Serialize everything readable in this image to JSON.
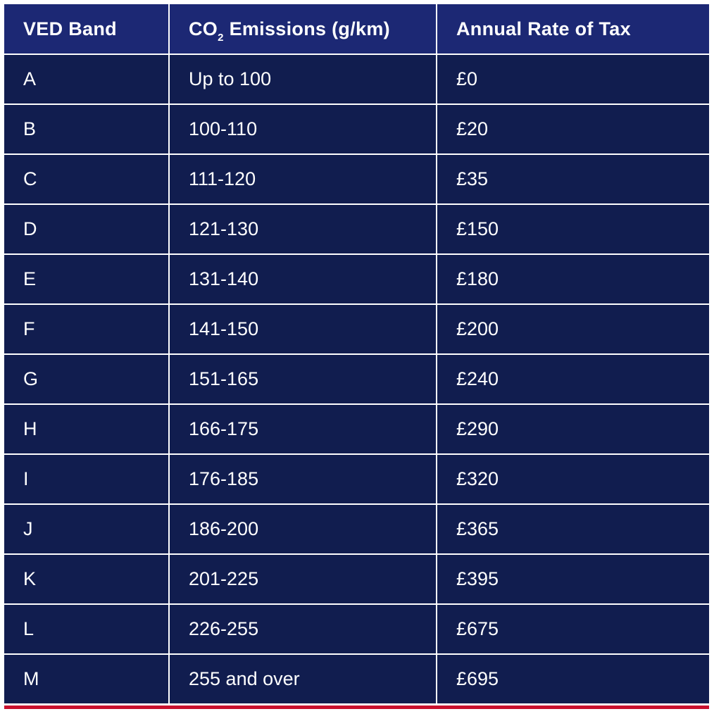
{
  "header": {
    "col1": "VED Band",
    "col2_main": "CO",
    "col2_sub": "2",
    "col2_rest": " Emissions (g/km)",
    "col3": "Annual Rate of Tax"
  },
  "rows": [
    {
      "band": "A",
      "emissions": "Up to 100",
      "rate": "£0"
    },
    {
      "band": "B",
      "emissions": "100-110",
      "rate": "£20"
    },
    {
      "band": "C",
      "emissions": "111-120",
      "rate": "£35"
    },
    {
      "band": "D",
      "emissions": "121-130",
      "rate": "£150"
    },
    {
      "band": "E",
      "emissions": "131-140",
      "rate": "£180"
    },
    {
      "band": "F",
      "emissions": "141-150",
      "rate": "£200"
    },
    {
      "band": "G",
      "emissions": "151-165",
      "rate": "£240"
    },
    {
      "band": "H",
      "emissions": "166-175",
      "rate": "£290"
    },
    {
      "band": "I",
      "emissions": "176-185",
      "rate": "£320"
    },
    {
      "band": "J",
      "emissions": "186-200",
      "rate": "£365"
    },
    {
      "band": "K",
      "emissions": "201-225",
      "rate": "£395"
    },
    {
      "band": "L",
      "emissions": "226-255",
      "rate": "£675"
    },
    {
      "band": "M",
      "emissions": "255 and over",
      "rate": "£695"
    }
  ],
  "colors": {
    "header_bg": "#1c2874",
    "row_bg": "#111d4f",
    "grid_lines": "#ffffff",
    "accent_rule": "#c8102e"
  }
}
